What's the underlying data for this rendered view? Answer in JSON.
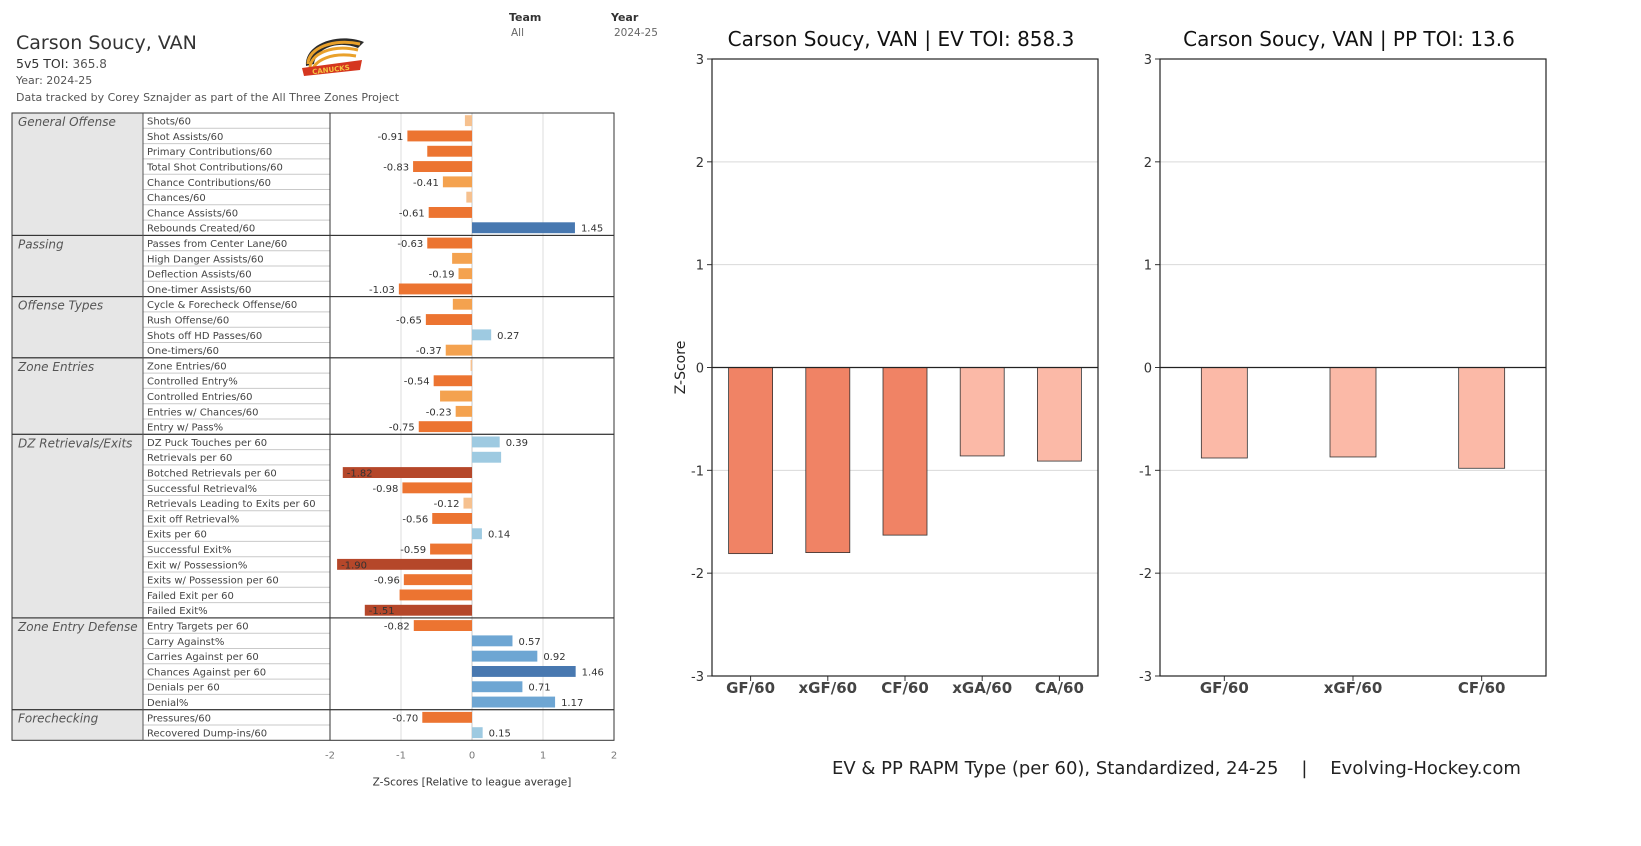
{
  "header": {
    "player": "Carson Soucy, VAN",
    "toi_label": "5v5 TOI:",
    "toi_value": "365.8",
    "year": "Year: 2024-25",
    "credit": "Data tracked by Corey Sznajder as part of the All Three Zones Project"
  },
  "filters": {
    "team_label": "Team",
    "team_value": "All",
    "year_label": "Year",
    "year_value": "2024-25"
  },
  "logo": {
    "name": "Canucks logo",
    "text": "CANUCKS"
  },
  "colors": {
    "strong_neg": "#b5472a",
    "neg": "#ec7431",
    "mild_neg": "#f4a24f",
    "slight_neg": "#f6c18f",
    "slight_pos": "#9ecae1",
    "pos": "#6ea6d3",
    "strong_pos": "#4878b0",
    "rapm_dark": "#f08365",
    "rapm_light": "#fbb9a7"
  },
  "z_chart": {
    "axis_title": "Z-Scores [Relative to league average]",
    "ticks": [
      -2,
      -1,
      0,
      1,
      2
    ],
    "range": [
      -2.2,
      2.0
    ],
    "groups": [
      {
        "name": "General Offense",
        "metrics": [
          {
            "label": "Shots/60",
            "value": -0.1,
            "show": false
          },
          {
            "label": "Shot Assists/60",
            "value": -0.91,
            "show": true
          },
          {
            "label": "Primary Contributions/60",
            "value": -0.63,
            "show": false
          },
          {
            "label": "Total Shot Contributions/60",
            "value": -0.83,
            "show": true
          },
          {
            "label": "Chance Contributions/60",
            "value": -0.41,
            "show": true
          },
          {
            "label": "Chances/60",
            "value": -0.08,
            "show": false
          },
          {
            "label": "Chance Assists/60",
            "value": -0.61,
            "show": true
          },
          {
            "label": "Rebounds Created/60",
            "value": 1.45,
            "show": true
          }
        ]
      },
      {
        "name": "Passing",
        "metrics": [
          {
            "label": "Passes from Center Lane/60",
            "value": -0.63,
            "show": true
          },
          {
            "label": "High Danger Assists/60",
            "value": -0.28,
            "show": false
          },
          {
            "label": "Deflection Assists/60",
            "value": -0.19,
            "show": true
          },
          {
            "label": "One-timer Assists/60",
            "value": -1.03,
            "show": true
          }
        ]
      },
      {
        "name": "Offense Types",
        "metrics": [
          {
            "label": "Cycle & Forecheck Offense/60",
            "value": -0.27,
            "show": false
          },
          {
            "label": "Rush Offense/60",
            "value": -0.65,
            "show": true
          },
          {
            "label": "Shots off HD Passes/60",
            "value": 0.27,
            "show": true
          },
          {
            "label": "One-timers/60",
            "value": -0.37,
            "show": true
          }
        ]
      },
      {
        "name": "Zone Entries",
        "metrics": [
          {
            "label": "Zone Entries/60",
            "value": -0.02,
            "show": false
          },
          {
            "label": "Controlled Entry%",
            "value": -0.54,
            "show": true
          },
          {
            "label": "Controlled Entries/60",
            "value": -0.45,
            "show": false
          },
          {
            "label": "Entries w/ Chances/60",
            "value": -0.23,
            "show": true
          },
          {
            "label": "Entry w/ Pass%",
            "value": -0.75,
            "show": true
          }
        ]
      },
      {
        "name": "DZ Retrievals/Exits",
        "metrics": [
          {
            "label": "DZ Puck Touches per 60",
            "value": 0.39,
            "show": true
          },
          {
            "label": "Retrievals per 60",
            "value": 0.41,
            "show": false
          },
          {
            "label": "Botched Retrievals per 60",
            "value": -1.82,
            "show": true
          },
          {
            "label": "Successful Retrieval%",
            "value": -0.98,
            "show": true
          },
          {
            "label": "Retrievals Leading to Exits per 60",
            "value": -0.12,
            "show": true
          },
          {
            "label": "Exit off Retrieval%",
            "value": -0.56,
            "show": true
          },
          {
            "label": "Exits per 60",
            "value": 0.14,
            "show": true
          },
          {
            "label": "Successful Exit%",
            "value": -0.59,
            "show": true
          },
          {
            "label": "Exit w/ Possession%",
            "value": -1.9,
            "show": true
          },
          {
            "label": "Exits w/ Possession per 60",
            "value": -0.96,
            "show": true
          },
          {
            "label": "Failed Exit per 60",
            "value": -1.02,
            "show": false
          },
          {
            "label": "Failed Exit%",
            "value": -1.51,
            "show": true
          }
        ]
      },
      {
        "name": "Zone Entry Defense",
        "metrics": [
          {
            "label": "Entry Targets per 60",
            "value": -0.82,
            "show": true
          },
          {
            "label": "Carry Against%",
            "value": 0.57,
            "show": true
          },
          {
            "label": "Carries Against per 60",
            "value": 0.92,
            "show": true
          },
          {
            "label": "Chances Against per 60",
            "value": 1.46,
            "show": true
          },
          {
            "label": "Denials per 60",
            "value": 0.71,
            "show": true
          },
          {
            "label": "Denial%",
            "value": 1.17,
            "show": true
          }
        ]
      },
      {
        "name": "Forechecking",
        "metrics": [
          {
            "label": "Pressures/60",
            "value": -0.7,
            "show": true
          },
          {
            "label": "Recovered Dump-ins/60",
            "value": 0.15,
            "show": true
          }
        ]
      }
    ]
  },
  "chart_data": [
    {
      "type": "bar",
      "title": "Carson Soucy, VAN  |  EV TOI: 858.3",
      "ylabel": "Z-Score",
      "ylim": [
        -3,
        3
      ],
      "yticks": [
        -3,
        -2,
        -1,
        0,
        1,
        2,
        3
      ],
      "categories": [
        "GF/60",
        "xGF/60",
        "CF/60",
        "xGA/60",
        "CA/60"
      ],
      "values": [
        -1.81,
        -1.8,
        -1.63,
        -0.86,
        -0.91
      ],
      "grid": true
    },
    {
      "type": "bar",
      "title": "Carson Soucy, VAN  |  PP TOI: 13.6",
      "ylim": [
        -3,
        3
      ],
      "yticks": [
        -3,
        -2,
        -1,
        0,
        1,
        2,
        3
      ],
      "categories": [
        "GF/60",
        "xGF/60",
        "CF/60"
      ],
      "values": [
        -0.88,
        -0.87,
        -0.98
      ],
      "grid": true
    }
  ],
  "footer": {
    "caption": "EV & PP RAPM Type (per 60), Standardized, 24-25    |    Evolving-Hockey.com"
  }
}
